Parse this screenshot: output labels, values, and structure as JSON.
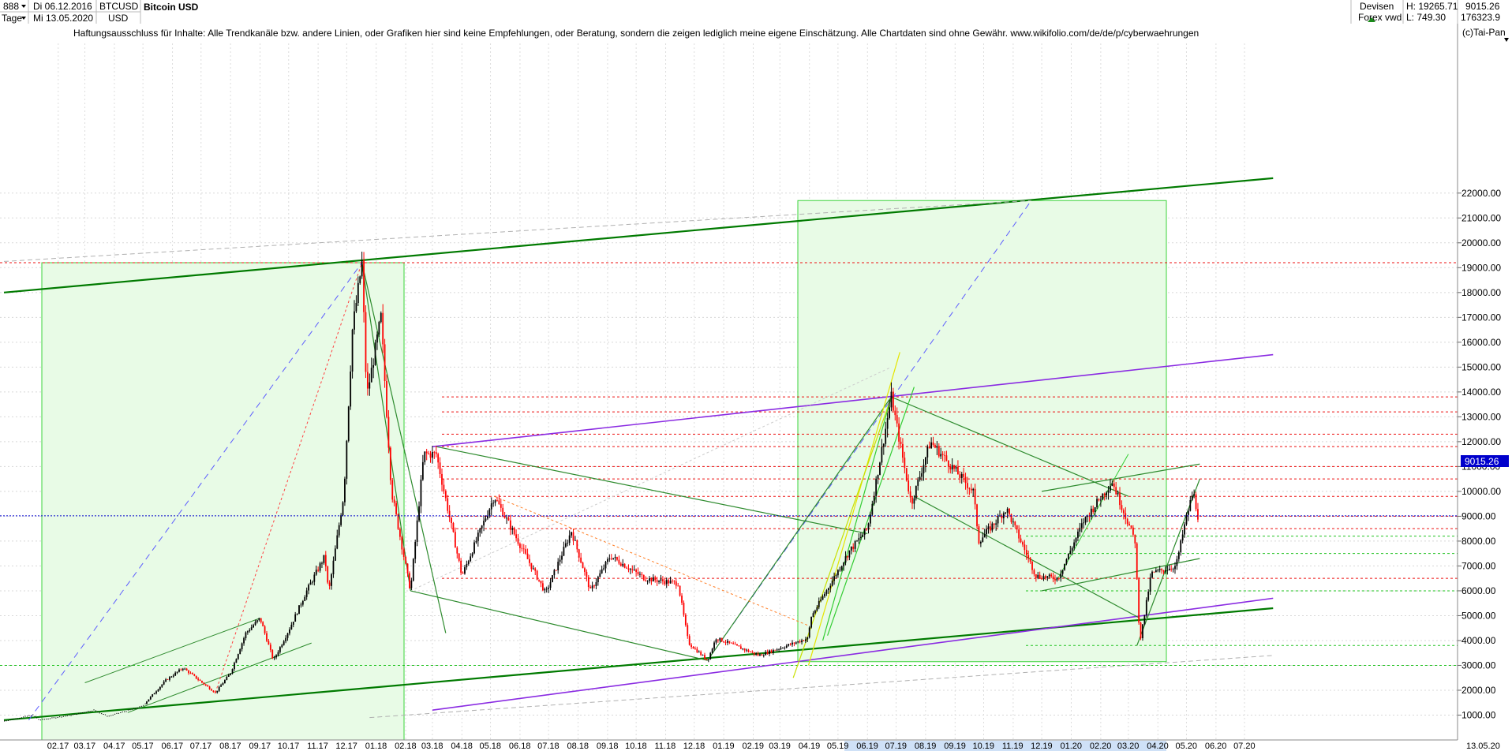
{
  "header": {
    "symbol_code": "888",
    "interval": "Tage",
    "date_start": "Di 06.12.2016",
    "date_end": "Mi 13.05.2020",
    "ticker": "BTCUSD",
    "currency": "USD",
    "title": "Bitcoin USD",
    "disclaimer": "Haftungsausschluss für Inhalte: Alle Trendkanäle bzw. andere Linien, oder Grafiken hier sind keine Empfehlungen, oder Beratung, sondern die zeigen lediglich meine eigene Einschätzung. Alle Chartdaten sind ohne Gewähr.  www.wikifolio.com/de/de/p/cyberwaehrungen",
    "source_label": "Devisen",
    "source_sub": "Forex vwd",
    "high_label": "H: 19265.71",
    "low_label": "L: 749.30",
    "last_value": "9015.26",
    "volume": "176323.9",
    "copyright": "(c)Tai-Pan",
    "scale_label": "L",
    "last_date": "13.05.20"
  },
  "chart_data": {
    "type": "candlestick",
    "title": "Bitcoin USD",
    "ylim": [
      0,
      23500
    ],
    "y_ticks": [
      1000,
      2000,
      3000,
      4000,
      5000,
      6000,
      7000,
      8000,
      9000,
      10000,
      11000,
      12000,
      13000,
      14000,
      15000,
      16000,
      17000,
      18000,
      19000,
      20000,
      21000,
      22000
    ],
    "y_tick_labels": [
      "1000.00",
      "2000.00",
      "3000.00",
      "4000.00",
      "5000.00",
      "6000.00",
      "7000.00",
      "8000.00",
      "9000.00",
      "10000.00",
      "11000.00",
      "12000.00",
      "13000.00",
      "14000.00",
      "15000.00",
      "16000.00",
      "17000.00",
      "18000.00",
      "19000.00",
      "20000.00",
      "21000.00",
      "22000.00"
    ],
    "x_tick_labels": [
      "02.17",
      "03.17",
      "04.17",
      "05.17",
      "06.17",
      "07.17",
      "08.17",
      "09.17",
      "10.17",
      "11.17",
      "12.17",
      "01.18",
      "02.18",
      "03.18",
      "04.18",
      "05.18",
      "06.18",
      "07.18",
      "08.18",
      "09.18",
      "10.18",
      "11.18",
      "12.18",
      "01.19",
      "02.19",
      "03.19",
      "04.19",
      "05.19",
      "06.19",
      "07.19",
      "08.19",
      "09.19",
      "10.19",
      "11.19",
      "12.19",
      "01.20",
      "02.20",
      "03.20",
      "04.20",
      "05.20",
      "06.20",
      "07.20"
    ],
    "price_path": [
      [
        "2016-12-06",
        760
      ],
      [
        "2017-01-05",
        1000
      ],
      [
        "2017-01-12",
        800
      ],
      [
        "2017-02-15",
        1000
      ],
      [
        "2017-03-10",
        1200
      ],
      [
        "2017-03-25",
        950
      ],
      [
        "2017-04-30",
        1350
      ],
      [
        "2017-05-25",
        2400
      ],
      [
        "2017-06-12",
        2900
      ],
      [
        "2017-07-16",
        1900
      ],
      [
        "2017-08-01",
        2700
      ],
      [
        "2017-08-17",
        4300
      ],
      [
        "2017-09-01",
        4900
      ],
      [
        "2017-09-15",
        3200
      ],
      [
        "2017-10-01",
        4400
      ],
      [
        "2017-10-20",
        6000
      ],
      [
        "2017-11-08",
        7400
      ],
      [
        "2017-11-12",
        5900
      ],
      [
        "2017-11-28",
        9900
      ],
      [
        "2017-12-07",
        16500
      ],
      [
        "2017-12-17",
        19200
      ],
      [
        "2017-12-22",
        13800
      ],
      [
        "2018-01-06",
        17000
      ],
      [
        "2018-01-17",
        10000
      ],
      [
        "2018-02-06",
        6000
      ],
      [
        "2018-02-20",
        11500
      ],
      [
        "2018-03-05",
        11500
      ],
      [
        "2018-04-01",
        6600
      ],
      [
        "2018-05-05",
        9800
      ],
      [
        "2018-06-28",
        5900
      ],
      [
        "2018-07-25",
        8400
      ],
      [
        "2018-08-14",
        6000
      ],
      [
        "2018-09-04",
        7400
      ],
      [
        "2018-10-10",
        6500
      ],
      [
        "2018-11-14",
        6300
      ],
      [
        "2018-11-25",
        3900
      ],
      [
        "2018-12-15",
        3200
      ],
      [
        "2018-12-24",
        4100
      ],
      [
        "2019-02-07",
        3400
      ],
      [
        "2019-03-31",
        4100
      ],
      [
        "2019-04-02",
        4900
      ],
      [
        "2019-05-13",
        7600
      ],
      [
        "2019-06-01",
        8500
      ],
      [
        "2019-06-26",
        13800
      ],
      [
        "2019-07-17",
        9500
      ],
      [
        "2019-08-06",
        12000
      ],
      [
        "2019-09-20",
        10000
      ],
      [
        "2019-09-26",
        8000
      ],
      [
        "2019-10-25",
        9300
      ],
      [
        "2019-11-25",
        6600
      ],
      [
        "2019-12-18",
        6500
      ],
      [
        "2020-01-14",
        8800
      ],
      [
        "2020-02-13",
        10400
      ],
      [
        "2020-03-08",
        8000
      ],
      [
        "2020-03-12",
        4800
      ],
      [
        "2020-03-13",
        3900
      ],
      [
        "2020-03-25",
        6700
      ],
      [
        "2020-04-20",
        7000
      ],
      [
        "2020-04-30",
        8800
      ],
      [
        "2020-05-08",
        10000
      ],
      [
        "2020-05-13",
        9015
      ]
    ],
    "last_price": 9015.26,
    "resistance_levels": [
      19200,
      13800,
      13200,
      12300,
      11800,
      11000,
      10500,
      9800,
      9000,
      8500,
      6500
    ],
    "support_levels": [
      8200,
      7500,
      6000,
      3800,
      3000
    ],
    "grid": true
  },
  "styles": {
    "bull_color": "#000000",
    "bear_color": "#ff0000",
    "green_channel": "#007a00",
    "purple_channel": "#8a2be2",
    "box_fill": "#e8fbe6",
    "box_stroke": "#3ad33a",
    "last_line": "#0000cc"
  }
}
